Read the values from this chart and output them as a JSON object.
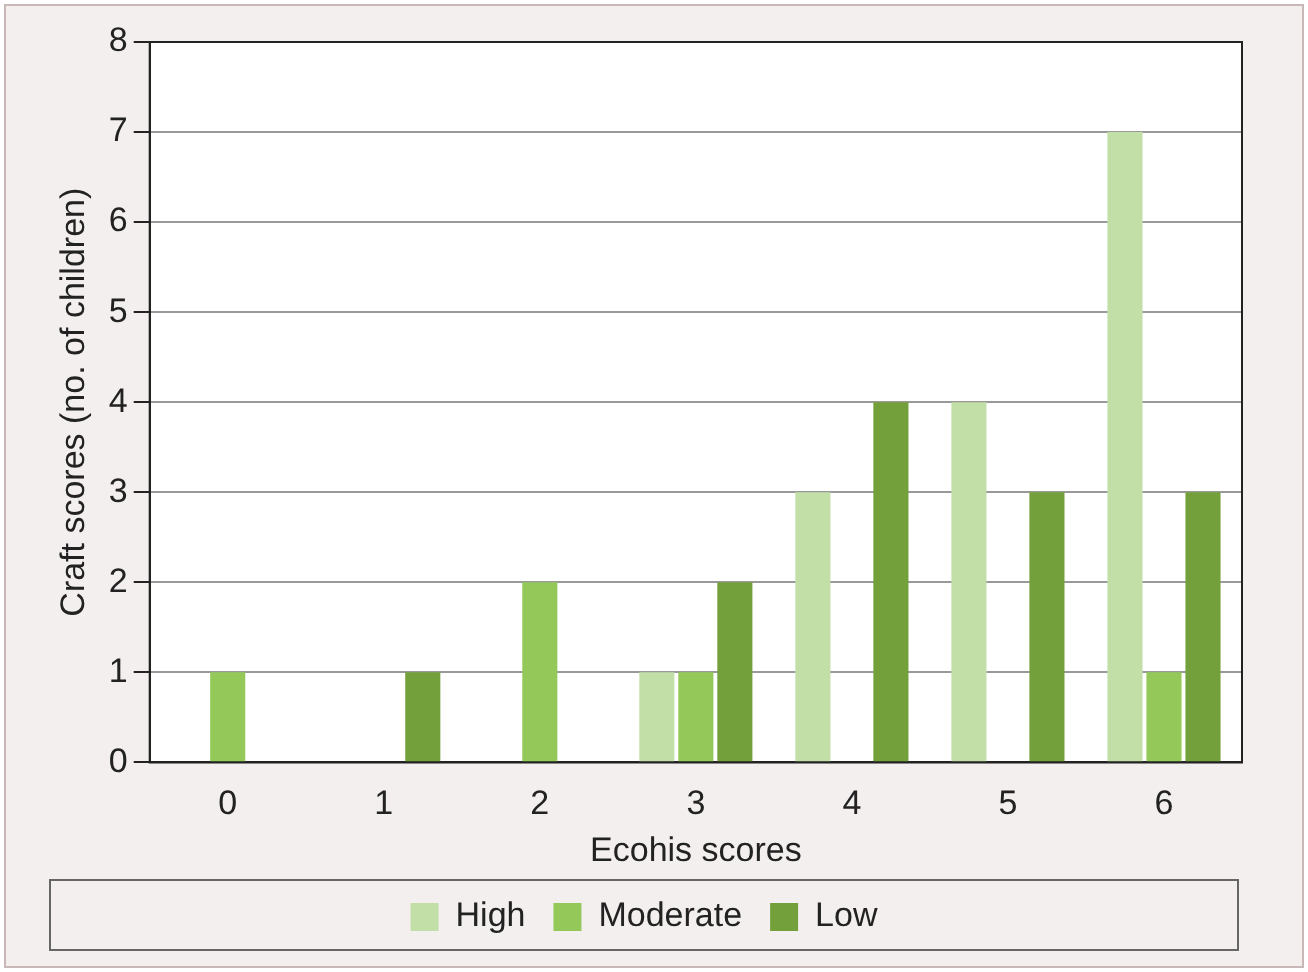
{
  "chart_data": {
    "type": "bar",
    "xlabel": "Ecohis scores",
    "ylabel": "Craft scores (no. of children)",
    "categories": [
      "0",
      "1",
      "2",
      "3",
      "4",
      "5",
      "6"
    ],
    "series": [
      {
        "name": "High",
        "color": "#c3dfa8",
        "values": [
          null,
          null,
          null,
          1,
          3,
          4,
          7
        ]
      },
      {
        "name": "Moderate",
        "color": "#94c95a",
        "values": [
          1,
          null,
          2,
          1,
          null,
          null,
          1
        ]
      },
      {
        "name": "Low",
        "color": "#74a03c",
        "values": [
          null,
          1,
          null,
          2,
          4,
          3,
          3
        ]
      }
    ],
    "ylim": [
      0,
      8
    ],
    "yticks": [
      0,
      1,
      2,
      3,
      4,
      5,
      6,
      7,
      8
    ],
    "grid": "y",
    "legend": "bottom"
  }
}
